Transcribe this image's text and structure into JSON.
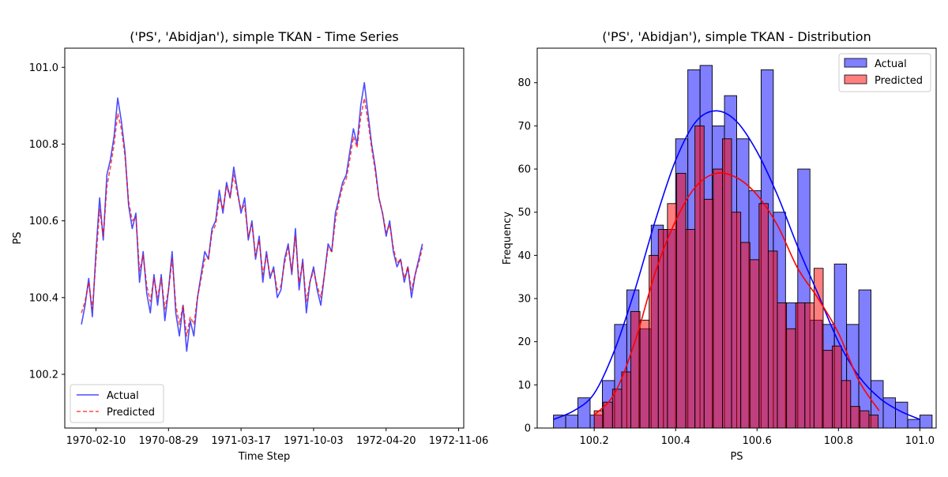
{
  "chart_data": [
    {
      "type": "line",
      "title": "('PS', 'Abidjan'), simple TKAN - Time Series",
      "xlabel": "Time Step",
      "ylabel": "PS",
      "x_range": [
        "1969-11-16",
        "1972-11-20"
      ],
      "ylim": [
        100.06,
        101.05
      ],
      "x_ticks": [
        "1970-02-10",
        "1970-08-29",
        "1971-03-17",
        "1971-10-03",
        "1972-04-20",
        "1972-11-06"
      ],
      "y_ticks": [
        100.2,
        100.4,
        100.6,
        100.8,
        101.0
      ],
      "legend": "lower-left",
      "series": [
        {
          "name": "Actual",
          "color": "#0000ff",
          "style": "solid",
          "points": [
            [
              "1970-01-01",
              100.33
            ],
            [
              "1970-01-11",
              100.38
            ],
            [
              "1970-01-21",
              100.45
            ],
            [
              "1970-01-31",
              100.35
            ],
            [
              "1970-02-10",
              100.52
            ],
            [
              "1970-02-20",
              100.66
            ],
            [
              "1970-03-02",
              100.55
            ],
            [
              "1970-03-12",
              100.72
            ],
            [
              "1970-03-22",
              100.76
            ],
            [
              "1970-04-01",
              100.82
            ],
            [
              "1970-04-11",
              100.92
            ],
            [
              "1970-04-21",
              100.86
            ],
            [
              "1970-05-01",
              100.78
            ],
            [
              "1970-05-11",
              100.64
            ],
            [
              "1970-05-21",
              100.58
            ],
            [
              "1970-05-31",
              100.62
            ],
            [
              "1970-06-10",
              100.44
            ],
            [
              "1970-06-20",
              100.52
            ],
            [
              "1970-06-30",
              100.41
            ],
            [
              "1970-07-10",
              100.36
            ],
            [
              "1970-07-20",
              100.46
            ],
            [
              "1970-07-30",
              100.38
            ],
            [
              "1970-08-09",
              100.46
            ],
            [
              "1970-08-19",
              100.34
            ],
            [
              "1970-08-29",
              100.42
            ],
            [
              "1970-09-08",
              100.52
            ],
            [
              "1970-09-18",
              100.36
            ],
            [
              "1970-09-28",
              100.3
            ],
            [
              "1970-10-08",
              100.38
            ],
            [
              "1970-10-18",
              100.26
            ],
            [
              "1970-10-28",
              100.34
            ],
            [
              "1970-11-07",
              100.3
            ],
            [
              "1970-11-17",
              100.4
            ],
            [
              "1970-11-27",
              100.46
            ],
            [
              "1970-12-07",
              100.52
            ],
            [
              "1970-12-17",
              100.5
            ],
            [
              "1970-12-27",
              100.58
            ],
            [
              "1971-01-06",
              100.6
            ],
            [
              "1971-01-16",
              100.68
            ],
            [
              "1971-01-26",
              100.62
            ],
            [
              "1971-02-05",
              100.7
            ],
            [
              "1971-02-15",
              100.66
            ],
            [
              "1971-02-25",
              100.74
            ],
            [
              "1971-03-07",
              100.68
            ],
            [
              "1971-03-17",
              100.62
            ],
            [
              "1971-03-27",
              100.66
            ],
            [
              "1971-04-06",
              100.55
            ],
            [
              "1971-04-16",
              100.6
            ],
            [
              "1971-04-26",
              100.5
            ],
            [
              "1971-05-06",
              100.56
            ],
            [
              "1971-05-16",
              100.44
            ],
            [
              "1971-05-26",
              100.52
            ],
            [
              "1971-06-05",
              100.45
            ],
            [
              "1971-06-15",
              100.48
            ],
            [
              "1971-06-25",
              100.4
            ],
            [
              "1971-07-05",
              100.42
            ],
            [
              "1971-07-15",
              100.5
            ],
            [
              "1971-07-25",
              100.54
            ],
            [
              "1971-08-04",
              100.46
            ],
            [
              "1971-08-14",
              100.58
            ],
            [
              "1971-08-24",
              100.42
            ],
            [
              "1971-09-03",
              100.5
            ],
            [
              "1971-09-13",
              100.36
            ],
            [
              "1971-09-23",
              100.44
            ],
            [
              "1971-10-03",
              100.48
            ],
            [
              "1971-10-13",
              100.42
            ],
            [
              "1971-10-23",
              100.38
            ],
            [
              "1971-11-02",
              100.46
            ],
            [
              "1971-11-12",
              100.54
            ],
            [
              "1971-11-22",
              100.52
            ],
            [
              "1971-12-02",
              100.62
            ],
            [
              "1971-12-12",
              100.66
            ],
            [
              "1971-12-22",
              100.7
            ],
            [
              "1972-01-01",
              100.72
            ],
            [
              "1972-01-11",
              100.78
            ],
            [
              "1972-01-21",
              100.84
            ],
            [
              "1972-01-31",
              100.8
            ],
            [
              "1972-02-10",
              100.9
            ],
            [
              "1972-02-20",
              100.96
            ],
            [
              "1972-03-01",
              100.88
            ],
            [
              "1972-03-11",
              100.8
            ],
            [
              "1972-03-21",
              100.74
            ],
            [
              "1972-03-31",
              100.66
            ],
            [
              "1972-04-10",
              100.62
            ],
            [
              "1972-04-20",
              100.56
            ],
            [
              "1972-04-30",
              100.6
            ],
            [
              "1972-05-10",
              100.52
            ],
            [
              "1972-05-20",
              100.48
            ],
            [
              "1972-05-30",
              100.5
            ],
            [
              "1972-06-09",
              100.44
            ],
            [
              "1972-06-19",
              100.48
            ],
            [
              "1972-06-29",
              100.4
            ],
            [
              "1972-07-09",
              100.46
            ],
            [
              "1972-07-19",
              100.5
            ],
            [
              "1972-07-29",
              100.54
            ]
          ]
        },
        {
          "name": "Predicted",
          "color": "#ff0000",
          "style": "dashed",
          "points": [
            [
              "1970-01-01",
              100.36
            ],
            [
              "1970-01-11",
              100.39
            ],
            [
              "1970-01-21",
              100.44
            ],
            [
              "1970-01-31",
              100.37
            ],
            [
              "1970-02-10",
              100.5
            ],
            [
              "1970-02-20",
              100.63
            ],
            [
              "1970-03-02",
              100.56
            ],
            [
              "1970-03-12",
              100.69
            ],
            [
              "1970-03-22",
              100.74
            ],
            [
              "1970-04-01",
              100.8
            ],
            [
              "1970-04-11",
              100.88
            ],
            [
              "1970-04-21",
              100.84
            ],
            [
              "1970-05-01",
              100.77
            ],
            [
              "1970-05-11",
              100.65
            ],
            [
              "1970-05-21",
              100.6
            ],
            [
              "1970-05-31",
              100.61
            ],
            [
              "1970-06-10",
              100.47
            ],
            [
              "1970-06-20",
              100.51
            ],
            [
              "1970-06-30",
              100.43
            ],
            [
              "1970-07-10",
              100.39
            ],
            [
              "1970-07-20",
              100.45
            ],
            [
              "1970-07-30",
              100.4
            ],
            [
              "1970-08-09",
              100.45
            ],
            [
              "1970-08-19",
              100.37
            ],
            [
              "1970-08-29",
              100.42
            ],
            [
              "1970-09-08",
              100.5
            ],
            [
              "1970-09-18",
              100.38
            ],
            [
              "1970-09-28",
              100.33
            ],
            [
              "1970-10-08",
              100.38
            ],
            [
              "1970-10-18",
              100.3
            ],
            [
              "1970-10-28",
              100.35
            ],
            [
              "1970-11-07",
              100.33
            ],
            [
              "1970-11-17",
              100.4
            ],
            [
              "1970-11-27",
              100.45
            ],
            [
              "1970-12-07",
              100.5
            ],
            [
              "1970-12-17",
              100.5
            ],
            [
              "1970-12-27",
              100.57
            ],
            [
              "1971-01-06",
              100.59
            ],
            [
              "1971-01-16",
              100.66
            ],
            [
              "1971-01-26",
              100.63
            ],
            [
              "1971-02-05",
              100.69
            ],
            [
              "1971-02-15",
              100.66
            ],
            [
              "1971-02-25",
              100.72
            ],
            [
              "1971-03-07",
              100.67
            ],
            [
              "1971-03-17",
              100.63
            ],
            [
              "1971-03-27",
              100.64
            ],
            [
              "1971-04-06",
              100.56
            ],
            [
              "1971-04-16",
              100.59
            ],
            [
              "1971-04-26",
              100.51
            ],
            [
              "1971-05-06",
              100.55
            ],
            [
              "1971-05-16",
              100.46
            ],
            [
              "1971-05-26",
              100.51
            ],
            [
              "1971-06-05",
              100.46
            ],
            [
              "1971-06-15",
              100.47
            ],
            [
              "1971-06-25",
              100.42
            ],
            [
              "1971-07-05",
              100.43
            ],
            [
              "1971-07-15",
              100.49
            ],
            [
              "1971-07-25",
              100.53
            ],
            [
              "1971-08-04",
              100.47
            ],
            [
              "1971-08-14",
              100.56
            ],
            [
              "1971-08-24",
              100.44
            ],
            [
              "1971-09-03",
              100.49
            ],
            [
              "1971-09-13",
              100.39
            ],
            [
              "1971-09-23",
              100.44
            ],
            [
              "1971-10-03",
              100.47
            ],
            [
              "1971-10-13",
              100.43
            ],
            [
              "1971-10-23",
              100.4
            ],
            [
              "1971-11-02",
              100.46
            ],
            [
              "1971-11-12",
              100.53
            ],
            [
              "1971-11-22",
              100.52
            ],
            [
              "1971-12-02",
              100.6
            ],
            [
              "1971-12-12",
              100.65
            ],
            [
              "1971-12-22",
              100.69
            ],
            [
              "1972-01-01",
              100.71
            ],
            [
              "1972-01-11",
              100.76
            ],
            [
              "1972-01-21",
              100.82
            ],
            [
              "1972-01-31",
              100.79
            ],
            [
              "1972-02-10",
              100.87
            ],
            [
              "1972-02-20",
              100.92
            ],
            [
              "1972-03-01",
              100.86
            ],
            [
              "1972-03-11",
              100.79
            ],
            [
              "1972-03-21",
              100.73
            ],
            [
              "1972-03-31",
              100.66
            ],
            [
              "1972-04-10",
              100.62
            ],
            [
              "1972-04-20",
              100.57
            ],
            [
              "1972-04-30",
              100.59
            ],
            [
              "1972-05-10",
              100.53
            ],
            [
              "1972-05-20",
              100.49
            ],
            [
              "1972-05-30",
              100.5
            ],
            [
              "1972-06-09",
              100.45
            ],
            [
              "1972-06-19",
              100.48
            ],
            [
              "1972-06-29",
              100.42
            ],
            [
              "1972-07-09",
              100.46
            ],
            [
              "1972-07-19",
              100.49
            ],
            [
              "1972-07-29",
              100.53
            ]
          ]
        }
      ]
    },
    {
      "type": "histogram",
      "title": "('PS', 'Abidjan'), simple TKAN - Distribution",
      "xlabel": "PS",
      "ylabel": "Frequency",
      "xlim": [
        100.06,
        101.04
      ],
      "ylim": [
        0,
        88
      ],
      "x_ticks": [
        100.2,
        100.4,
        100.6,
        100.8,
        101.0
      ],
      "y_ticks": [
        0,
        10,
        20,
        30,
        40,
        50,
        60,
        70,
        80
      ],
      "legend": "top-right",
      "series": [
        {
          "name": "Actual",
          "color": "#0000ff",
          "bin_start": 100.1,
          "bin_width": 0.03,
          "counts": [
            3,
            3,
            7,
            3,
            11,
            24,
            32,
            23,
            47,
            46,
            67,
            83,
            84,
            70,
            77,
            67,
            55,
            83,
            50,
            29,
            60,
            25,
            24,
            38,
            24,
            32,
            11,
            7,
            6,
            2,
            3
          ],
          "kde": [
            [
              100.1,
              2
            ],
            [
              100.15,
              4
            ],
            [
              100.2,
              8
            ],
            [
              100.25,
              18
            ],
            [
              100.3,
              32
            ],
            [
              100.35,
              48
            ],
            [
              100.4,
              62
            ],
            [
              100.45,
              71
            ],
            [
              100.5,
              73.5
            ],
            [
              100.55,
              71
            ],
            [
              100.6,
              64
            ],
            [
              100.65,
              54
            ],
            [
              100.7,
              42
            ],
            [
              100.75,
              31
            ],
            [
              100.8,
              20
            ],
            [
              100.85,
              12
            ],
            [
              100.9,
              7
            ],
            [
              100.95,
              4
            ],
            [
              101.0,
              2
            ]
          ]
        },
        {
          "name": "Predicted",
          "color": "#ff0000",
          "bin_start": 100.2,
          "bin_width": 0.0225,
          "counts": [
            4,
            6,
            9,
            13,
            27,
            25,
            40,
            46,
            52,
            59,
            46,
            70,
            53,
            60,
            67,
            50,
            43,
            39,
            52,
            41,
            29,
            23,
            29,
            29,
            37,
            18,
            19,
            11,
            5,
            4,
            3
          ],
          "kde": [
            [
              100.2,
              3
            ],
            [
              100.25,
              8
            ],
            [
              100.3,
              20
            ],
            [
              100.35,
              36
            ],
            [
              100.4,
              48
            ],
            [
              100.45,
              56
            ],
            [
              100.5,
              59
            ],
            [
              100.55,
              58
            ],
            [
              100.6,
              54
            ],
            [
              100.65,
              47
            ],
            [
              100.7,
              37
            ],
            [
              100.75,
              30
            ],
            [
              100.8,
              22
            ],
            [
              100.85,
              11
            ],
            [
              100.9,
              4
            ]
          ]
        }
      ]
    }
  ]
}
